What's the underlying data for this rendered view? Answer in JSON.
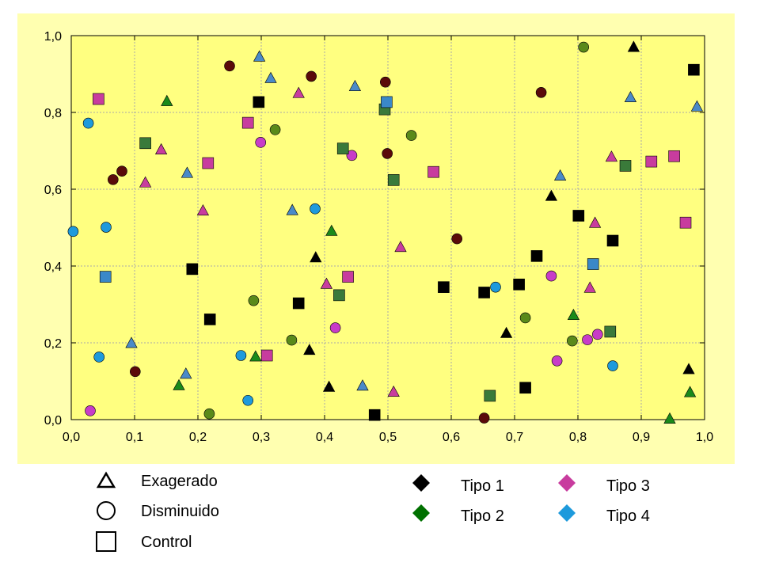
{
  "colors": {
    "frame_bg": "#FFFFB0",
    "plot_bg": "#FFFF80",
    "grid": "#A8A8A8",
    "axis": "#000000",
    "tipo1": "#000000",
    "tipo2": "#007000",
    "tipo3": "#C83C9E",
    "tipo4": "#1E9ADC"
  },
  "chart_data": {
    "type": "scatter",
    "title": "",
    "xlabel": "",
    "ylabel": "",
    "xlim": [
      0.0,
      1.0
    ],
    "ylim": [
      0.0,
      1.0
    ],
    "grid": true,
    "legend_position": "bottom",
    "x_ticks": [
      "0,0",
      "0,1",
      "0,2",
      "0,3",
      "0,4",
      "0,5",
      "0,6",
      "0,7",
      "0,8",
      "0,9",
      "1,0"
    ],
    "y_ticks": [
      "0,0",
      "0,2",
      "0,4",
      "0,6",
      "0,8",
      "1,0"
    ],
    "shape_legend": [
      {
        "shape": "triangle",
        "label": "Exagerado"
      },
      {
        "shape": "circle",
        "label": "Disminuido"
      },
      {
        "shape": "square",
        "label": "Control"
      }
    ],
    "color_legend": [
      {
        "key": "tipo1",
        "label": "Tipo 1",
        "color": "#000000"
      },
      {
        "key": "tipo2",
        "label": "Tipo 2",
        "color": "#007000"
      },
      {
        "key": "tipo3",
        "label": "Tipo 3",
        "color": "#C83C9E"
      },
      {
        "key": "tipo4",
        "label": "Tipo 4",
        "color": "#1E9ADC"
      }
    ],
    "series": [
      {
        "shape": "triangle",
        "type": "tipo1",
        "points": [
          [
            0.888,
            0.97
          ],
          [
            0.758,
            0.582
          ],
          [
            0.386,
            0.422
          ],
          [
            0.687,
            0.225
          ],
          [
            0.376,
            0.181
          ],
          [
            0.407,
            0.085
          ],
          [
            0.975,
            0.131
          ]
        ]
      },
      {
        "shape": "triangle",
        "type": "tipo2",
        "points": [
          [
            0.151,
            0.829
          ],
          [
            0.411,
            0.491
          ],
          [
            0.793,
            0.272
          ],
          [
            0.291,
            0.164
          ],
          [
            0.17,
            0.089
          ],
          [
            0.977,
            0.071
          ],
          [
            0.945,
            0.002
          ]
        ]
      },
      {
        "shape": "triangle",
        "type": "tipo3",
        "points": [
          [
            0.359,
            0.85
          ],
          [
            0.142,
            0.703
          ],
          [
            0.117,
            0.617
          ],
          [
            0.208,
            0.544
          ],
          [
            0.853,
            0.684
          ],
          [
            0.827,
            0.512
          ],
          [
            0.52,
            0.449
          ],
          [
            0.403,
            0.353
          ],
          [
            0.819,
            0.343
          ],
          [
            0.509,
            0.072
          ]
        ]
      },
      {
        "shape": "triangle",
        "type": "tipo4",
        "points": [
          [
            0.297,
            0.945
          ],
          [
            0.315,
            0.889
          ],
          [
            0.448,
            0.868
          ],
          [
            0.183,
            0.642
          ],
          [
            0.349,
            0.545
          ],
          [
            0.095,
            0.199
          ],
          [
            0.181,
            0.119
          ],
          [
            0.46,
            0.088
          ],
          [
            0.772,
            0.635
          ],
          [
            0.883,
            0.839
          ],
          [
            0.988,
            0.815
          ]
        ]
      },
      {
        "shape": "circle",
        "type": "tipo1",
        "points": [
          [
            0.25,
            0.921
          ],
          [
            0.379,
            0.894
          ],
          [
            0.496,
            0.879
          ],
          [
            0.742,
            0.852
          ],
          [
            0.08,
            0.647
          ],
          [
            0.066,
            0.625
          ],
          [
            0.499,
            0.693
          ],
          [
            0.609,
            0.471
          ],
          [
            0.101,
            0.125
          ],
          [
            0.652,
            0.004
          ]
        ]
      },
      {
        "shape": "circle",
        "type": "tipo2",
        "points": [
          [
            0.809,
            0.97
          ],
          [
            0.322,
            0.755
          ],
          [
            0.537,
            0.74
          ],
          [
            0.288,
            0.31
          ],
          [
            0.348,
            0.207
          ],
          [
            0.717,
            0.265
          ],
          [
            0.791,
            0.205
          ],
          [
            0.218,
            0.015
          ]
        ]
      },
      {
        "shape": "circle",
        "type": "tipo3",
        "points": [
          [
            0.299,
            0.722
          ],
          [
            0.443,
            0.688
          ],
          [
            0.758,
            0.374
          ],
          [
            0.417,
            0.239
          ],
          [
            0.815,
            0.208
          ],
          [
            0.831,
            0.222
          ],
          [
            0.767,
            0.153
          ],
          [
            0.03,
            0.023
          ]
        ]
      },
      {
        "shape": "circle",
        "type": "tipo4",
        "points": [
          [
            0.027,
            0.772
          ],
          [
            0.003,
            0.49
          ],
          [
            0.055,
            0.501
          ],
          [
            0.385,
            0.549
          ],
          [
            0.044,
            0.163
          ],
          [
            0.268,
            0.167
          ],
          [
            0.279,
            0.05
          ],
          [
            0.67,
            0.345
          ],
          [
            0.855,
            0.14
          ]
        ]
      },
      {
        "shape": "square",
        "type": "tipo1",
        "points": [
          [
            0.296,
            0.827
          ],
          [
            0.191,
            0.392
          ],
          [
            0.219,
            0.261
          ],
          [
            0.359,
            0.303
          ],
          [
            0.479,
            0.012
          ],
          [
            0.588,
            0.345
          ],
          [
            0.652,
            0.331
          ],
          [
            0.707,
            0.352
          ],
          [
            0.735,
            0.426
          ],
          [
            0.717,
            0.083
          ],
          [
            0.801,
            0.531
          ],
          [
            0.855,
            0.466
          ],
          [
            0.983,
            0.911
          ]
        ]
      },
      {
        "shape": "square",
        "type": "tipo2",
        "points": [
          [
            0.117,
            0.72
          ],
          [
            0.429,
            0.706
          ],
          [
            0.495,
            0.808
          ],
          [
            0.509,
            0.624
          ],
          [
            0.423,
            0.324
          ],
          [
            0.661,
            0.062
          ],
          [
            0.851,
            0.229
          ],
          [
            0.875,
            0.661
          ]
        ]
      },
      {
        "shape": "square",
        "type": "tipo3",
        "points": [
          [
            0.043,
            0.835
          ],
          [
            0.279,
            0.773
          ],
          [
            0.216,
            0.668
          ],
          [
            0.572,
            0.645
          ],
          [
            0.437,
            0.372
          ],
          [
            0.309,
            0.167
          ],
          [
            0.916,
            0.672
          ],
          [
            0.952,
            0.686
          ],
          [
            0.97,
            0.513
          ]
        ]
      },
      {
        "shape": "square",
        "type": "tipo4",
        "points": [
          [
            0.054,
            0.372
          ],
          [
            0.498,
            0.827
          ],
          [
            0.824,
            0.405
          ]
        ]
      }
    ]
  }
}
